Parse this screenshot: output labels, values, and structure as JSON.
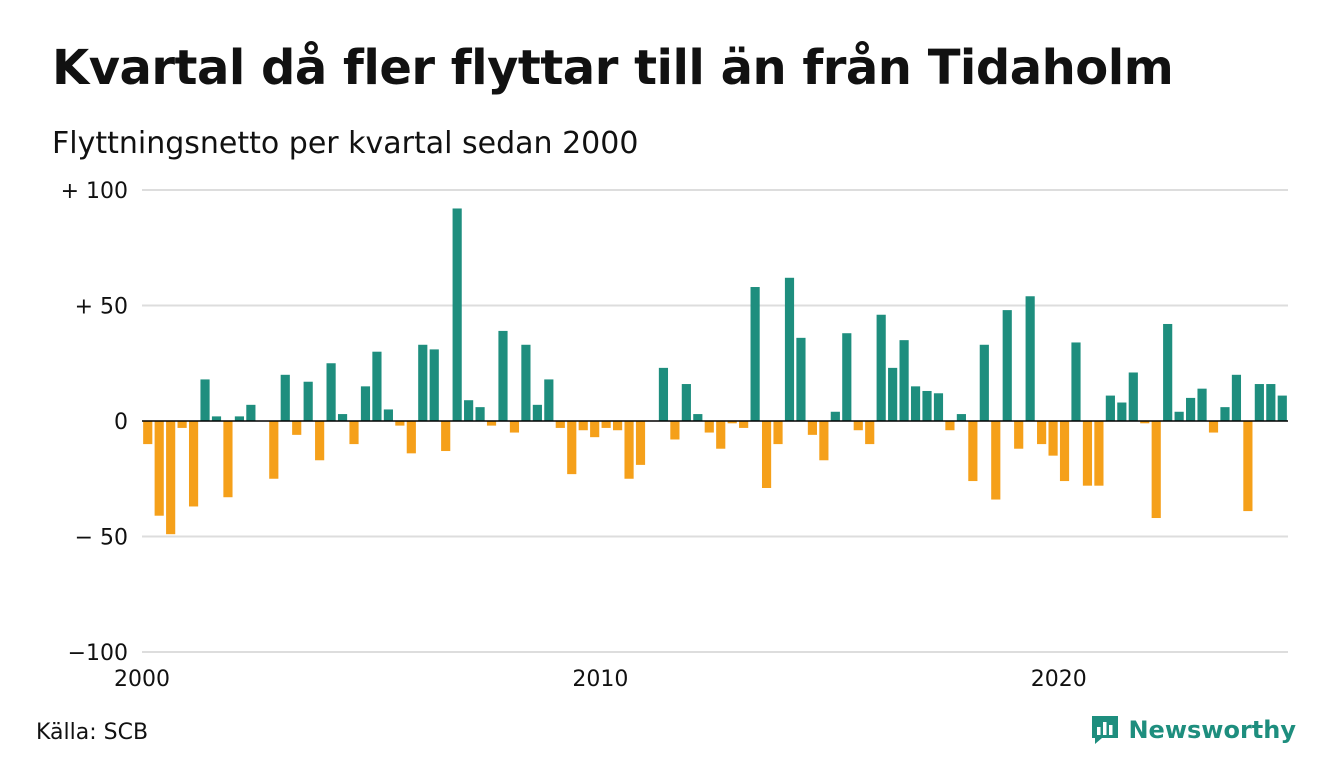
{
  "title": "Kvartal då fler flyttar till än från Tidaholm",
  "subtitle": "Flyttningsnetto per kvartal sedan 2000",
  "source": "Källa: SCB",
  "brand": {
    "name": "Newsworthy",
    "icon": "newsworthy-logo-icon"
  },
  "colors": {
    "positive": "#1e8e7e",
    "negative": "#f5a01a",
    "grid": "#dddddd",
    "zero": "#000000"
  },
  "chart_data": {
    "type": "bar",
    "title": "Kvartal då fler flyttar till än från Tidaholm",
    "subtitle": "Flyttningsnetto per kvartal sedan 2000",
    "xlabel": "",
    "ylabel": "",
    "x_start_year": 2000,
    "ylim": [
      -100,
      100
    ],
    "y_ticks": [
      {
        "value": 100,
        "label": "+ 100"
      },
      {
        "value": 50,
        "label": "+  50"
      },
      {
        "value": 0,
        "label": "0"
      },
      {
        "value": -50,
        "label": "− 50"
      },
      {
        "value": -100,
        "label": "−100"
      }
    ],
    "x_ticks": [
      {
        "year": 2000,
        "label": "2000"
      },
      {
        "year": 2010,
        "label": "2010"
      },
      {
        "year": 2020,
        "label": "2020"
      }
    ],
    "grid": true,
    "series": [
      {
        "values": [
          -10,
          -41,
          -49,
          -3,
          -37,
          18,
          2,
          -33,
          2,
          7,
          0,
          -25,
          20,
          -6,
          17,
          -17,
          25,
          3,
          -10,
          15,
          30,
          5,
          -2,
          -14,
          33,
          31,
          -13,
          92,
          9,
          6,
          -2,
          39,
          -5,
          33,
          7,
          18,
          -3,
          -23,
          -4,
          -7,
          -3,
          -4,
          -25,
          -19,
          0,
          23,
          -8,
          16,
          3,
          -5,
          -12,
          -1,
          -3,
          58,
          -29,
          -10,
          62,
          36,
          -6,
          -17,
          4,
          38,
          -4,
          -10,
          46,
          23,
          35,
          15,
          13,
          12,
          -4,
          3,
          -26,
          33,
          -34,
          48,
          -12,
          54,
          -10,
          -15,
          -26,
          34,
          -28,
          -28,
          11,
          8,
          21,
          -1,
          -42,
          42,
          4,
          10,
          14,
          -5,
          6,
          20,
          -39,
          16,
          16,
          11
        ]
      }
    ]
  }
}
